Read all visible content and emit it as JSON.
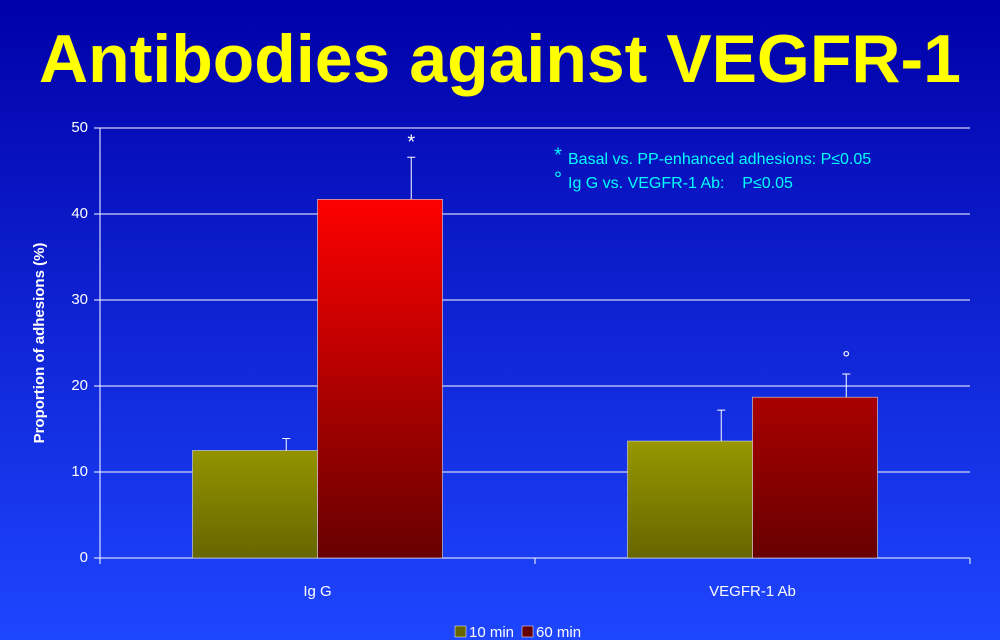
{
  "chart_data": {
    "type": "bar",
    "title": "Antibodies against VEGFR-1",
    "y_label": "Proportion of adhesions (%)",
    "categories": [
      "Ig G",
      "VEGFR-1 Ab"
    ],
    "series": [
      {
        "name": "10 min",
        "color": "#ffff00",
        "values": [
          12.5,
          13.6
        ],
        "errors": [
          1.4,
          3.6
        ],
        "markers": [
          null,
          null
        ]
      },
      {
        "name": "60 min",
        "color": "#ff0000",
        "values": [
          41.7,
          18.7
        ],
        "errors": [
          4.9,
          2.7
        ],
        "markers": [
          "*",
          "°"
        ]
      }
    ],
    "annotations": [
      {
        "symbol": "*",
        "text": "Basal vs. PP-enhanced adhesions: P≤0.05"
      },
      {
        "symbol": "°",
        "text": "Ig G vs. VEGFR-1 Ab:    P≤0.05"
      }
    ],
    "ylim": [
      0,
      50
    ],
    "yticks": [
      0,
      10,
      20,
      30,
      40,
      50
    ],
    "grid": true,
    "legend": "bottom"
  }
}
